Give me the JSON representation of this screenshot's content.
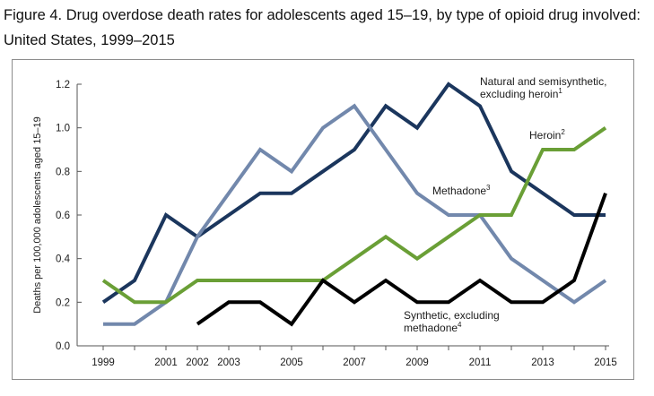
{
  "title": "Figure 4. Drug overdose death rates for adolescents aged 15–19, by type of opioid drug involved: United States, 1999–2015",
  "chart_data": {
    "type": "line",
    "title": "Figure 4. Drug overdose death rates for adolescents aged 15–19, by type of opioid drug involved: United States, 1999–2015",
    "xlabel": "",
    "ylabel": "Deaths per 100,000 adolescents aged 15–19",
    "xlim": [
      1999,
      2015
    ],
    "ylim": [
      0,
      1.2
    ],
    "x_ticks": [
      1999,
      2001,
      2002,
      2003,
      2005,
      2007,
      2009,
      2011,
      2013,
      2015
    ],
    "y_ticks": [
      "0.0",
      "0.2",
      "0.4",
      "0.6",
      "0.8",
      "1.0",
      "1.2"
    ],
    "grid": false,
    "series": [
      {
        "name": "Natural and semisynthetic, excluding heroin",
        "label_lines": [
          "Natural and semisynthetic,",
          "excluding heroin"
        ],
        "footnote": "1",
        "color": "#1b365d",
        "x": [
          1999,
          2000,
          2001,
          2002,
          2003,
          2004,
          2005,
          2006,
          2007,
          2008,
          2009,
          2010,
          2011,
          2012,
          2013,
          2014,
          2015
        ],
        "y": [
          0.2,
          0.3,
          0.6,
          0.5,
          0.6,
          0.7,
          0.7,
          0.8,
          0.9,
          1.1,
          1.0,
          1.2,
          1.1,
          0.8,
          0.7,
          0.6,
          0.6
        ]
      },
      {
        "name": "Methadone",
        "label_lines": [
          "Methadone"
        ],
        "footnote": "3",
        "color": "#7288ac",
        "x": [
          1999,
          2000,
          2001,
          2002,
          2003,
          2004,
          2005,
          2006,
          2007,
          2008,
          2009,
          2010,
          2011,
          2012,
          2013,
          2014,
          2015
        ],
        "y": [
          0.1,
          0.1,
          0.2,
          0.5,
          0.7,
          0.9,
          0.8,
          1.0,
          1.1,
          0.9,
          0.7,
          0.6,
          0.6,
          0.4,
          0.3,
          0.2,
          0.3
        ]
      },
      {
        "name": "Heroin",
        "label_lines": [
          "Heroin"
        ],
        "footnote": "2",
        "color": "#6a9f36",
        "x": [
          1999,
          2000,
          2001,
          2002,
          2003,
          2004,
          2005,
          2006,
          2007,
          2008,
          2009,
          2010,
          2011,
          2012,
          2013,
          2014,
          2015
        ],
        "y": [
          0.3,
          0.2,
          0.2,
          0.3,
          0.3,
          0.3,
          0.3,
          0.3,
          0.4,
          0.5,
          0.4,
          0.5,
          0.6,
          0.6,
          0.9,
          0.9,
          1.0
        ]
      },
      {
        "name": "Synthetic, excluding methadone",
        "label_lines": [
          "Synthetic, excluding",
          "methadone"
        ],
        "footnote": "4",
        "color": "#000000",
        "x": [
          2002,
          2003,
          2004,
          2005,
          2006,
          2007,
          2008,
          2009,
          2010,
          2011,
          2012,
          2013,
          2014,
          2015
        ],
        "y": [
          0.1,
          0.2,
          0.2,
          0.1,
          0.3,
          0.2,
          0.3,
          0.2,
          0.2,
          0.3,
          0.2,
          0.2,
          0.3,
          0.7
        ]
      }
    ]
  }
}
